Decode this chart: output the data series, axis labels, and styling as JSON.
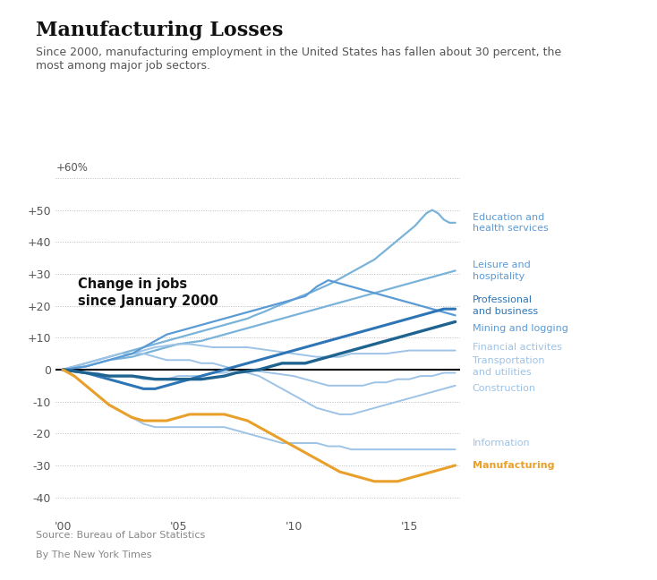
{
  "title": "Manufacturing Losses",
  "subtitle": "Since 2000, manufacturing employment in the United States has fallen about 30 percent, the\nmost among major job sectors.",
  "annotation": "Change in jobs\nsince January 2000",
  "source": "Source: Bureau of Labor Statistics",
  "byline": "By The New York Times",
  "ytick_labels": [
    "+50",
    "+40",
    "+30",
    "+20",
    "+10",
    "0",
    "-10",
    "-20",
    "-30",
    "-40"
  ],
  "ytick_vals": [
    50,
    40,
    30,
    20,
    10,
    0,
    -10,
    -20,
    -30,
    -40
  ],
  "xtick_vals": [
    0,
    5,
    10,
    15
  ],
  "xtick_labels": [
    "'00",
    "'05",
    "'10",
    "'15"
  ],
  "ylim": [
    -45,
    64
  ],
  "xlim": [
    -0.3,
    17.2
  ],
  "background_color": "#ffffff",
  "series": {
    "education_health": {
      "label": "Education and\nhealth services",
      "color": "#7ab3d9",
      "lw": 1.6,
      "zorder": 3,
      "data_x": [
        0,
        0.25,
        0.5,
        0.75,
        1,
        1.25,
        1.5,
        1.75,
        2,
        2.25,
        2.5,
        2.75,
        3,
        3.25,
        3.5,
        3.75,
        4,
        4.25,
        4.5,
        4.75,
        5,
        5.25,
        5.5,
        5.75,
        6,
        6.25,
        6.5,
        6.75,
        7,
        7.25,
        7.5,
        7.75,
        8,
        8.25,
        8.5,
        8.75,
        9,
        9.25,
        9.5,
        9.75,
        10,
        10.25,
        10.5,
        10.75,
        11,
        11.25,
        11.5,
        11.75,
        12,
        12.25,
        12.5,
        12.75,
        13,
        13.25,
        13.5,
        13.75,
        14,
        14.25,
        14.5,
        14.75,
        15,
        15.25,
        15.5,
        15.75,
        16,
        16.25,
        16.5,
        16.75,
        17
      ],
      "data_y": [
        0,
        0.5,
        1,
        1.5,
        2,
        2.5,
        3,
        3.5,
        4,
        4.5,
        5,
        5.5,
        6,
        6.5,
        7,
        7.5,
        8,
        8.5,
        9,
        9.5,
        10,
        10.5,
        11,
        11.5,
        12,
        12.5,
        13,
        13.5,
        14,
        14.5,
        15,
        15.5,
        16,
        16.8,
        17.5,
        18.2,
        19,
        19.8,
        20.5,
        21.2,
        22,
        22.8,
        23.5,
        24.2,
        25,
        25.8,
        26.6,
        27.5,
        28.5,
        29.5,
        30.5,
        31.5,
        32.5,
        33.5,
        34.5,
        36,
        37.5,
        39,
        40.5,
        42,
        43.5,
        45,
        47,
        49,
        50,
        49,
        47,
        46,
        46
      ]
    },
    "leisure_hospitality": {
      "label": "Leisure and\nhospitality",
      "color": "#7ab3d9",
      "lw": 1.6,
      "zorder": 3,
      "data_x": [
        0,
        0.5,
        1,
        1.5,
        2,
        2.5,
        3,
        3.5,
        4,
        4.5,
        5,
        5.5,
        6,
        6.5,
        7,
        7.5,
        8,
        8.5,
        9,
        9.5,
        10,
        10.5,
        11,
        11.5,
        12,
        12.5,
        13,
        13.5,
        14,
        14.5,
        15,
        15.5,
        16,
        16.5,
        17
      ],
      "data_y": [
        0,
        0.5,
        1,
        2,
        3,
        3.5,
        4,
        5,
        6,
        7,
        8,
        8.5,
        9,
        10,
        11,
        12,
        13,
        14,
        15,
        16,
        17,
        18,
        19,
        20,
        21,
        22,
        23,
        24,
        25,
        26,
        27,
        28,
        29,
        30,
        31
      ]
    },
    "professional_business": {
      "label": "Professional\nand business",
      "color": "#2e75b6",
      "lw": 2.2,
      "zorder": 5,
      "data_x": [
        0,
        0.5,
        1,
        1.5,
        2,
        2.5,
        3,
        3.5,
        4,
        4.5,
        5,
        5.5,
        6,
        6.5,
        7,
        7.5,
        8,
        8.5,
        9,
        9.5,
        10,
        10.5,
        11,
        11.5,
        12,
        12.5,
        13,
        13.5,
        14,
        14.5,
        15,
        15.5,
        16,
        16.5,
        17
      ],
      "data_y": [
        0,
        -0.5,
        -1,
        -2,
        -3,
        -4,
        -5,
        -6,
        -6,
        -5,
        -4,
        -3,
        -2,
        -1,
        0,
        1,
        2,
        3,
        4,
        5,
        6,
        7,
        8,
        9,
        10,
        11,
        12,
        13,
        14,
        15,
        16,
        17,
        18,
        19,
        19
      ]
    },
    "mining_logging": {
      "label": "Mining and logging",
      "color": "#5b9bd5",
      "lw": 1.6,
      "zorder": 4,
      "data_x": [
        0,
        0.5,
        1,
        1.5,
        2,
        2.5,
        3,
        3.5,
        4,
        4.5,
        5,
        5.5,
        6,
        6.5,
        7,
        7.5,
        8,
        8.5,
        9,
        9.5,
        10,
        10.5,
        11,
        11.5,
        12,
        12.5,
        13,
        13.5,
        14,
        14.5,
        15,
        15.5,
        16,
        16.5,
        17
      ],
      "data_y": [
        0,
        0.5,
        1,
        2,
        3,
        4,
        5,
        7,
        9,
        11,
        12,
        13,
        14,
        15,
        16,
        17,
        18,
        19,
        20,
        21,
        22,
        23,
        26,
        28,
        27,
        26,
        25,
        24,
        23,
        22,
        21,
        20,
        19,
        18,
        17
      ]
    },
    "financial": {
      "label": "Financial activites",
      "color": "#9dc3e6",
      "lw": 1.4,
      "zorder": 3,
      "data_x": [
        0,
        0.5,
        1,
        1.5,
        2,
        2.5,
        3,
        3.5,
        4,
        4.5,
        5,
        5.5,
        6,
        6.5,
        7,
        7.5,
        8,
        8.5,
        9,
        9.5,
        10,
        10.5,
        11,
        11.5,
        12,
        12.5,
        13,
        13.5,
        14,
        14.5,
        15,
        15.5,
        16,
        16.5,
        17
      ],
      "data_y": [
        0,
        0.5,
        1,
        2,
        3,
        4,
        5,
        6,
        7,
        7.5,
        8,
        8,
        7.5,
        7,
        7,
        7,
        7,
        6.5,
        6,
        5.5,
        5,
        4.5,
        4,
        4,
        4,
        5,
        5,
        5,
        5,
        5.5,
        6,
        6,
        6,
        6,
        6
      ]
    },
    "transportation_utilities": {
      "label": "Transportation\nand utilities",
      "color": "#9dc3e6",
      "lw": 1.4,
      "zorder": 3,
      "data_x": [
        0,
        0.5,
        1,
        1.5,
        2,
        2.5,
        3,
        3.5,
        4,
        4.5,
        5,
        5.5,
        6,
        6.5,
        7,
        7.5,
        8,
        8.5,
        9,
        9.5,
        10,
        10.5,
        11,
        11.5,
        12,
        12.5,
        13,
        13.5,
        14,
        14.5,
        15,
        15.5,
        16,
        16.5,
        17
      ],
      "data_y": [
        0,
        0,
        -1,
        -1,
        -2,
        -2,
        -2,
        -3,
        -3,
        -3,
        -2,
        -2,
        -2,
        -1,
        -1,
        0,
        0,
        -0.5,
        -1,
        -1.5,
        -2,
        -3,
        -4,
        -5,
        -5,
        -5,
        -5,
        -4,
        -4,
        -3,
        -3,
        -2,
        -2,
        -1,
        -1
      ]
    },
    "construction": {
      "label": "Construction",
      "color": "#9dc3e6",
      "lw": 1.4,
      "zorder": 3,
      "data_x": [
        0,
        0.5,
        1,
        1.5,
        2,
        2.5,
        3,
        3.5,
        4,
        4.5,
        5,
        5.5,
        6,
        6.5,
        7,
        7.5,
        8,
        8.5,
        9,
        9.5,
        10,
        10.5,
        11,
        11.5,
        12,
        12.5,
        13,
        13.5,
        14,
        14.5,
        15,
        15.5,
        16,
        16.5,
        17
      ],
      "data_y": [
        0,
        1,
        2,
        3,
        4,
        5,
        5,
        5,
        4,
        3,
        3,
        3,
        2,
        2,
        1,
        0,
        -1,
        -2,
        -4,
        -6,
        -8,
        -10,
        -12,
        -13,
        -14,
        -14,
        -13,
        -12,
        -11,
        -10,
        -9,
        -8,
        -7,
        -6,
        -5
      ]
    },
    "information": {
      "label": "Information",
      "color": "#9dc3e6",
      "lw": 1.4,
      "zorder": 3,
      "data_x": [
        0,
        0.5,
        1,
        1.5,
        2,
        2.5,
        3,
        3.5,
        4,
        4.5,
        5,
        5.5,
        6,
        6.5,
        7,
        7.5,
        8,
        8.5,
        9,
        9.5,
        10,
        10.5,
        11,
        11.5,
        12,
        12.5,
        13,
        13.5,
        14,
        14.5,
        15,
        15.5,
        16,
        16.5,
        17
      ],
      "data_y": [
        0,
        -2,
        -5,
        -8,
        -11,
        -13,
        -15,
        -17,
        -18,
        -18,
        -18,
        -18,
        -18,
        -18,
        -18,
        -19,
        -20,
        -21,
        -22,
        -23,
        -23,
        -23,
        -23,
        -24,
        -24,
        -25,
        -25,
        -25,
        -25,
        -25,
        -25,
        -25,
        -25,
        -25,
        -25
      ]
    },
    "manufacturing": {
      "label": "Manufacturing",
      "color": "#e8a02a",
      "lw": 2.2,
      "zorder": 6,
      "data_x": [
        0,
        0.5,
        1,
        1.5,
        2,
        2.5,
        3,
        3.5,
        4,
        4.5,
        5,
        5.5,
        6,
        6.5,
        7,
        7.5,
        8,
        8.5,
        9,
        9.5,
        10,
        10.5,
        11,
        11.5,
        12,
        12.5,
        13,
        13.5,
        14,
        14.5,
        15,
        15.5,
        16,
        16.5,
        17
      ],
      "data_y": [
        0,
        -2,
        -5,
        -8,
        -11,
        -13,
        -15,
        -16,
        -16,
        -16,
        -15,
        -14,
        -14,
        -14,
        -14,
        -15,
        -16,
        -18,
        -20,
        -22,
        -24,
        -26,
        -28,
        -30,
        -32,
        -33,
        -34,
        -35,
        -35,
        -35,
        -34,
        -33,
        -32,
        -31,
        -30
      ]
    },
    "govt_dark": {
      "label": "",
      "color": "#1f6391",
      "lw": 2.4,
      "zorder": 5,
      "data_x": [
        0,
        0.5,
        1,
        1.5,
        2,
        2.5,
        3,
        3.5,
        4,
        4.5,
        5,
        5.5,
        6,
        6.5,
        7,
        7.5,
        8,
        8.5,
        9,
        9.5,
        10,
        10.5,
        11,
        11.5,
        12,
        12.5,
        13,
        13.5,
        14,
        14.5,
        15,
        15.5,
        16,
        16.5,
        17
      ],
      "data_y": [
        0,
        -0.5,
        -1,
        -1.5,
        -2,
        -2,
        -2,
        -2.5,
        -3,
        -3,
        -3,
        -3,
        -3,
        -2.5,
        -2,
        -1,
        -0.5,
        0,
        1,
        2,
        2,
        2,
        3,
        4,
        5,
        6,
        7,
        8,
        9,
        10,
        11,
        12,
        13,
        14,
        15
      ]
    }
  },
  "right_labels": [
    {
      "key": "education_health",
      "text": "Education and\nhealth services",
      "color": "#5b9bd5",
      "bold": false,
      "y": 46
    },
    {
      "key": "leisure_hospitality",
      "text": "Leisure and\nhospitality",
      "color": "#5b9bd5",
      "bold": false,
      "y": 31
    },
    {
      "key": "professional_business",
      "text": "Professional\nand business",
      "color": "#2e75b6",
      "bold": false,
      "y": 20
    },
    {
      "key": "mining_logging",
      "text": "Mining and logging",
      "color": "#5b9bd5",
      "bold": false,
      "y": 13
    },
    {
      "key": "financial",
      "text": "Financial activites",
      "color": "#9dc3e6",
      "bold": false,
      "y": 7
    },
    {
      "key": "transportation_utilities",
      "text": "Transportation\nand utilities",
      "color": "#9dc3e6",
      "bold": false,
      "y": 1
    },
    {
      "key": "construction",
      "text": "Construction",
      "color": "#9dc3e6",
      "bold": false,
      "y": -6
    },
    {
      "key": "information",
      "text": "Information",
      "color": "#9dc3e6",
      "bold": false,
      "y": -23
    },
    {
      "key": "manufacturing",
      "text": "Manufacturing",
      "color": "#e8a02a",
      "bold": true,
      "y": -30
    }
  ]
}
